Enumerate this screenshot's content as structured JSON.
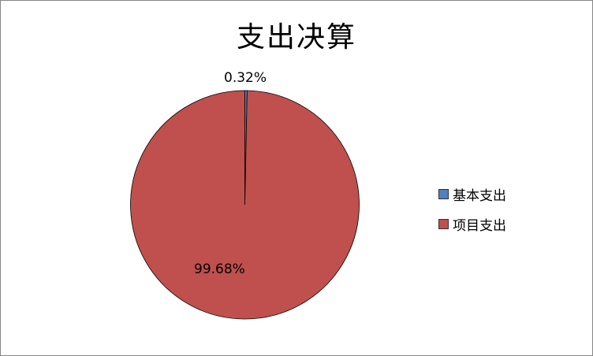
{
  "chart_data": {
    "type": "pie",
    "title": "支出决算",
    "categories": [
      "基本支出",
      "项目支出"
    ],
    "values": [
      0.32,
      99.68
    ],
    "data_labels": [
      "0.32%",
      "99.68%"
    ],
    "colors": [
      "#4F81BD",
      "#C0504D"
    ],
    "start_angle": "12 o'clock, clockwise",
    "legend_position": "right"
  }
}
